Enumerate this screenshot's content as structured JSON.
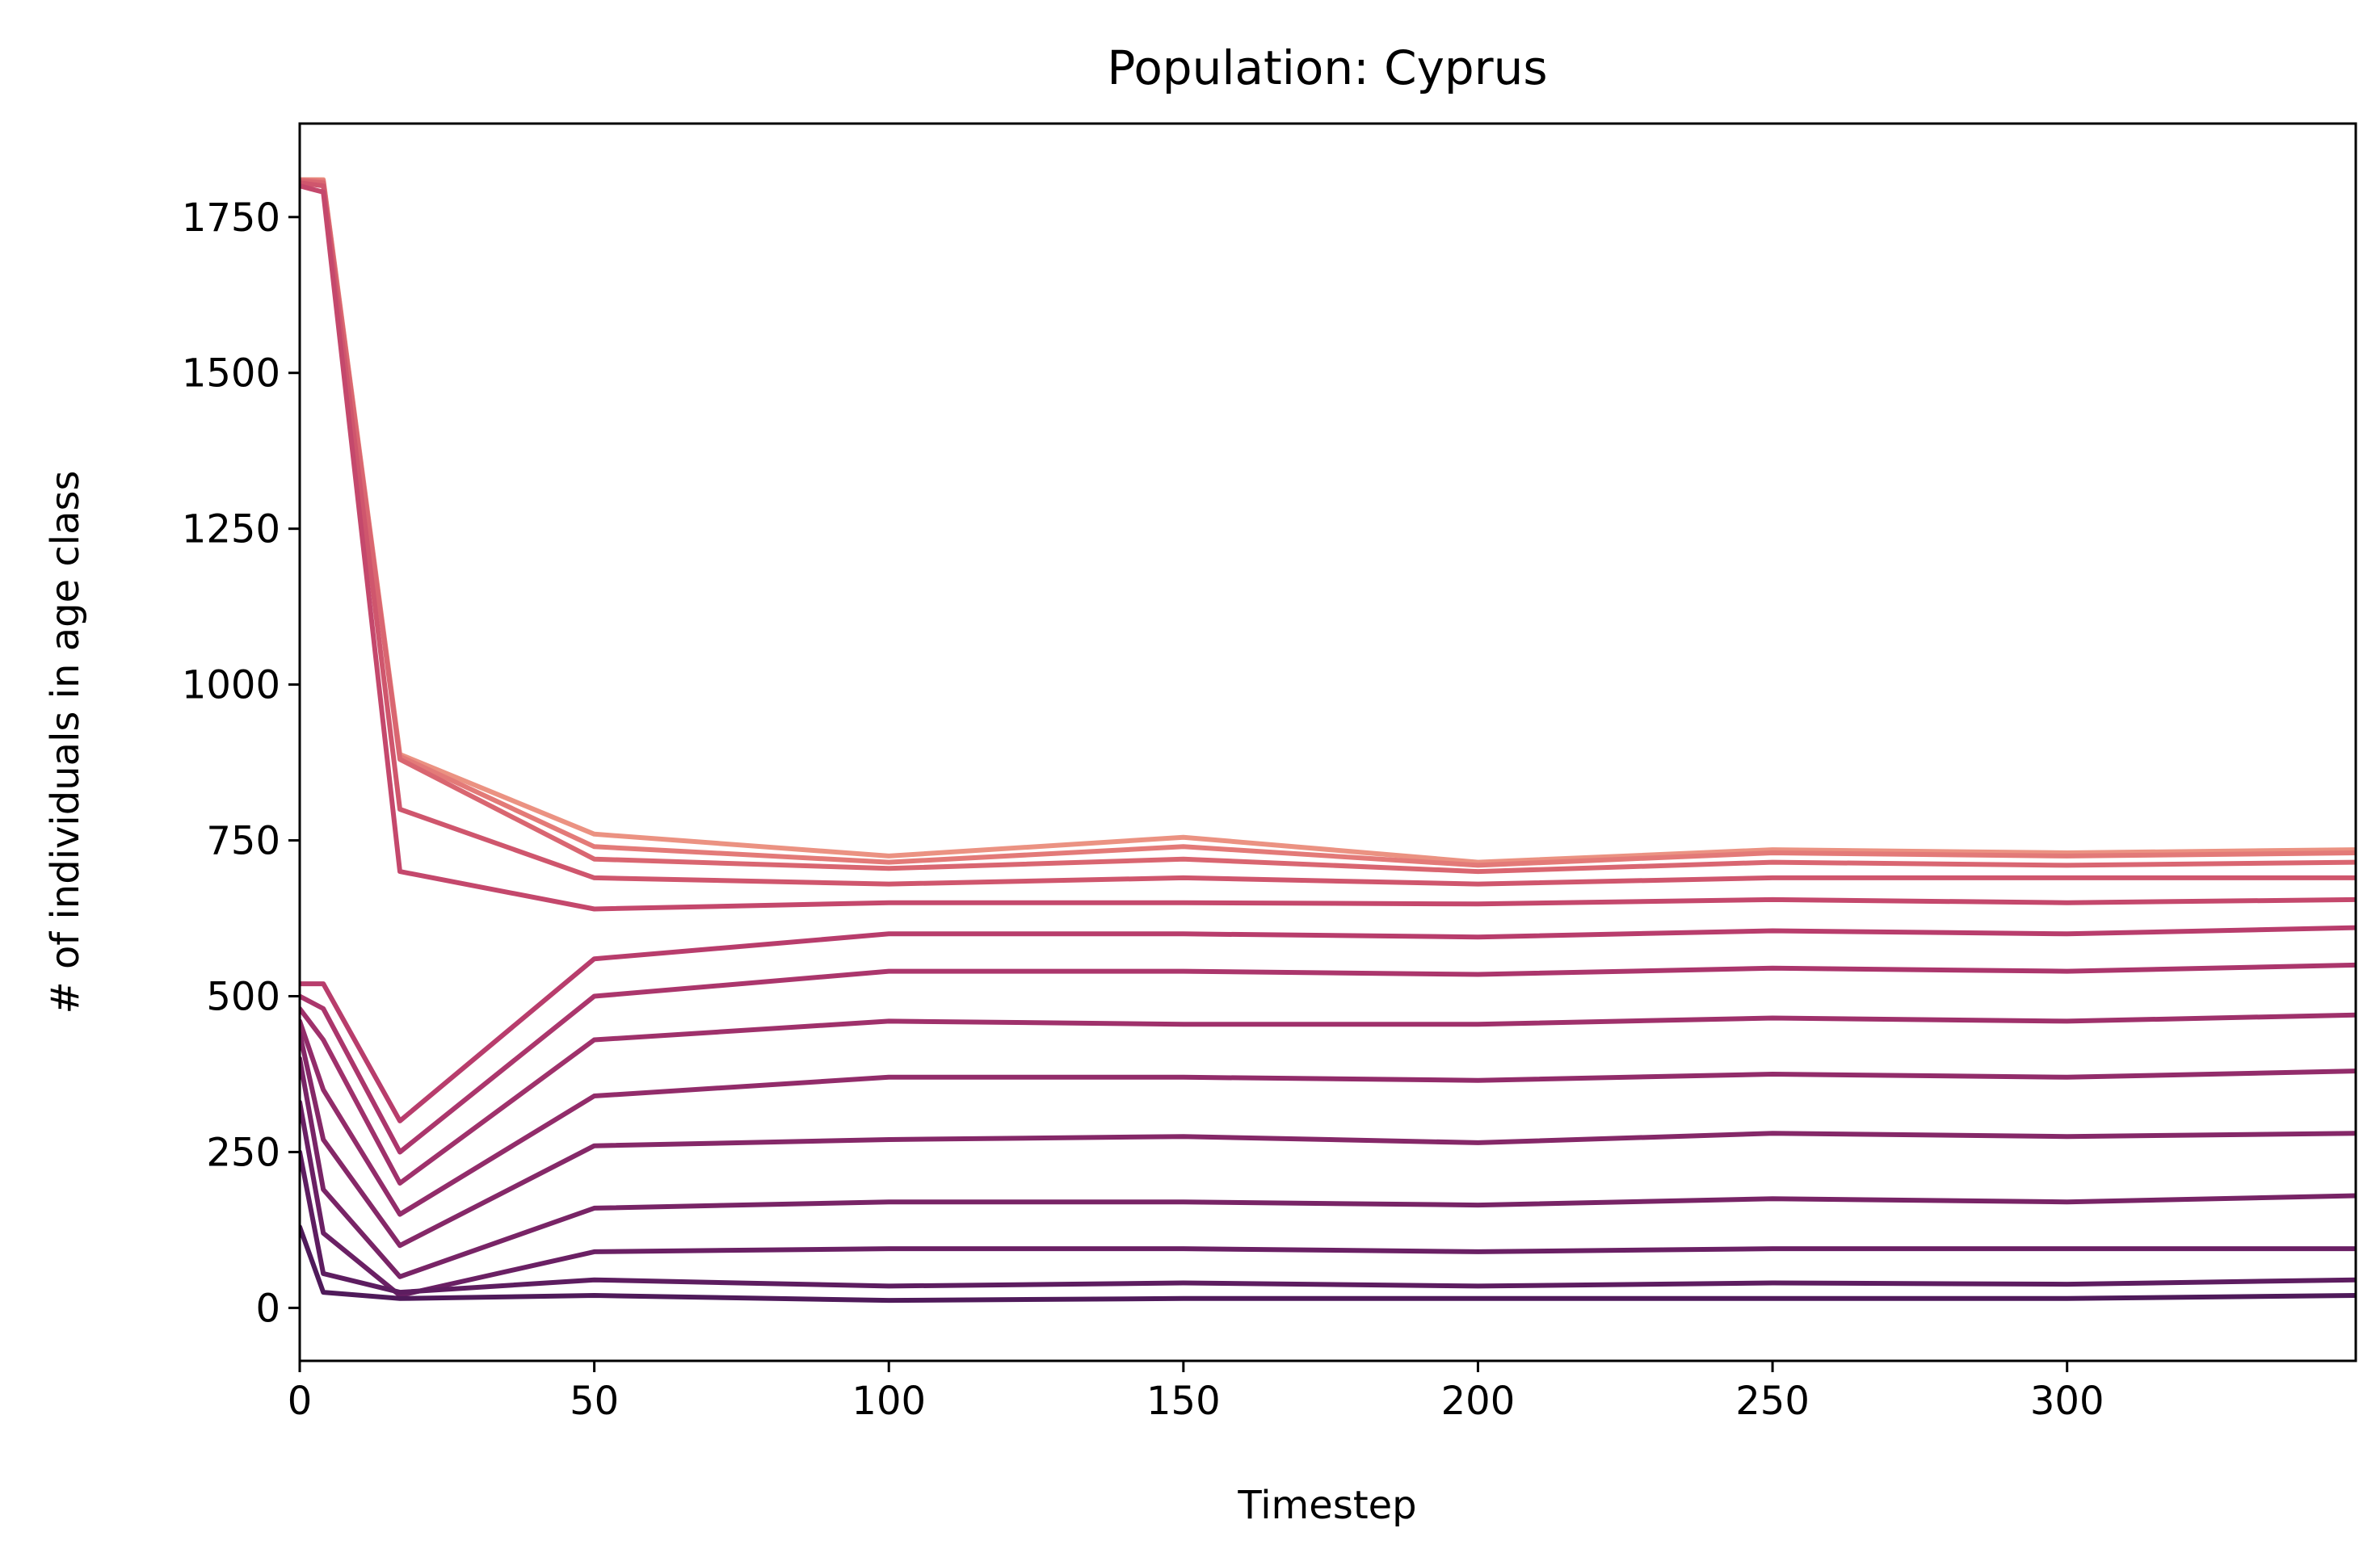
{
  "chart_data": {
    "type": "line",
    "title": "Population: Cyprus",
    "xlabel": "Timestep",
    "ylabel": "# of individuals in age class",
    "xlim": [
      0,
      349
    ],
    "ylim": [
      -85,
      1900
    ],
    "x_ticks": [
      0,
      50,
      100,
      150,
      200,
      250,
      300
    ],
    "y_ticks": [
      0,
      250,
      500,
      750,
      1000,
      1250,
      1500,
      1750
    ],
    "grid": false,
    "legend": "none",
    "palette": {
      "low_age_class": "#4f1a5a",
      "mid_age_class": "#b83a6c",
      "high_age_class": "#f2a97c"
    },
    "series": [
      {
        "series_index": 1,
        "color": "#4f1a5a",
        "x": [
          0,
          4,
          17,
          50,
          100,
          150,
          200,
          250,
          300,
          349
        ],
        "y": [
          130,
          25,
          15,
          20,
          12,
          15,
          15,
          15,
          15,
          20
        ]
      },
      {
        "series_index": 2,
        "color": "#5d1d60",
        "x": [
          0,
          4,
          17,
          50,
          100,
          150,
          200,
          250,
          300,
          349
        ],
        "y": [
          250,
          55,
          25,
          45,
          35,
          40,
          35,
          40,
          38,
          45
        ]
      },
      {
        "series_index": 3,
        "color": "#6a2064",
        "x": [
          0,
          4,
          17,
          50,
          100,
          150,
          200,
          250,
          300,
          349
        ],
        "y": [
          330,
          120,
          20,
          90,
          95,
          95,
          90,
          95,
          95,
          95
        ]
      },
      {
        "series_index": 4,
        "color": "#782466",
        "x": [
          0,
          4,
          17,
          50,
          100,
          150,
          200,
          250,
          300,
          349
        ],
        "y": [
          400,
          190,
          50,
          160,
          170,
          170,
          165,
          175,
          170,
          180
        ]
      },
      {
        "series_index": 5,
        "color": "#852868",
        "x": [
          0,
          4,
          17,
          50,
          100,
          150,
          200,
          250,
          300,
          349
        ],
        "y": [
          440,
          270,
          100,
          260,
          270,
          275,
          265,
          280,
          275,
          280
        ]
      },
      {
        "series_index": 6,
        "color": "#922c6a",
        "x": [
          0,
          4,
          17,
          50,
          100,
          150,
          200,
          250,
          300,
          349
        ],
        "y": [
          460,
          350,
          150,
          340,
          370,
          370,
          365,
          375,
          370,
          380
        ]
      },
      {
        "series_index": 7,
        "color": "#9f316b",
        "x": [
          0,
          4,
          17,
          50,
          100,
          150,
          200,
          250,
          300,
          349
        ],
        "y": [
          480,
          430,
          200,
          430,
          460,
          455,
          455,
          465,
          460,
          470
        ]
      },
      {
        "series_index": 8,
        "color": "#ab366c",
        "x": [
          0,
          4,
          17,
          50,
          100,
          150,
          200,
          250,
          300,
          349
        ],
        "y": [
          500,
          480,
          250,
          500,
          540,
          540,
          535,
          545,
          540,
          550
        ]
      },
      {
        "series_index": 9,
        "color": "#b83d6c",
        "x": [
          0,
          4,
          17,
          50,
          100,
          150,
          200,
          250,
          300,
          349
        ],
        "y": [
          520,
          520,
          300,
          560,
          600,
          600,
          595,
          605,
          600,
          610
        ]
      },
      {
        "series_index": 10,
        "color": "#c4486c",
        "x": [
          0,
          4,
          17,
          50,
          100,
          150,
          200,
          250,
          300,
          349
        ],
        "y": [
          1800,
          1790,
          700,
          640,
          650,
          650,
          648,
          655,
          650,
          655
        ]
      },
      {
        "series_index": 11,
        "color": "#cf566d",
        "x": [
          0,
          4,
          17,
          50,
          100,
          150,
          200,
          250,
          300,
          349
        ],
        "y": [
          1805,
          1800,
          800,
          690,
          680,
          690,
          680,
          690,
          690,
          690
        ]
      },
      {
        "series_index": 12,
        "color": "#d96671",
        "x": [
          0,
          4,
          17,
          50,
          100,
          150,
          200,
          250,
          300,
          349
        ],
        "y": [
          1808,
          1805,
          880,
          720,
          705,
          720,
          700,
          715,
          710,
          715
        ]
      },
      {
        "series_index": 13,
        "color": "#e37a78",
        "x": [
          0,
          4,
          17,
          50,
          100,
          150,
          200,
          250,
          300,
          349
        ],
        "y": [
          1810,
          1808,
          885,
          740,
          715,
          740,
          710,
          730,
          725,
          730
        ]
      },
      {
        "series_index": 14,
        "color": "#eb9282",
        "x": [
          0,
          4,
          17,
          50,
          100,
          150,
          200,
          250,
          300,
          349
        ],
        "y": [
          1810,
          1810,
          888,
          760,
          725,
          755,
          715,
          735,
          730,
          735
        ]
      }
    ]
  }
}
